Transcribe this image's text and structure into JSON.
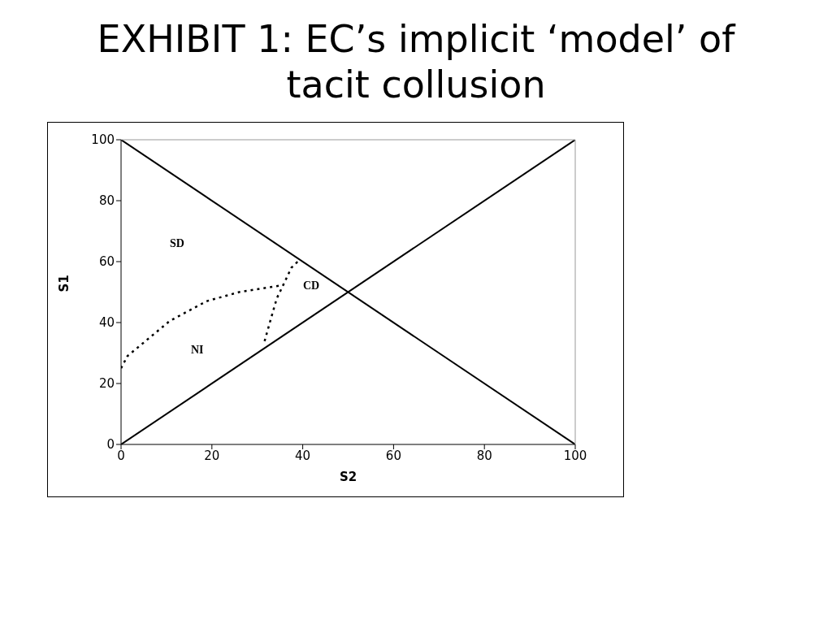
{
  "chart_data": {
    "type": "line",
    "title": "EXHIBIT 1: EC’s implicit ‘model’ of tacit collusion",
    "xlabel": "S2",
    "ylabel": "S1",
    "xlim": [
      0,
      100
    ],
    "ylim": [
      0,
      100
    ],
    "xticks": [
      0,
      20,
      40,
      60,
      80,
      100
    ],
    "yticks": [
      0,
      20,
      40,
      60,
      80,
      100
    ],
    "marker": "none",
    "series": [
      {
        "color": "#000000",
        "line_style": "solid",
        "x": [
          0,
          100
        ],
        "values": [
          100,
          0
        ]
      },
      {
        "color": "#000000",
        "line_style": "solid",
        "x": [
          0,
          100
        ],
        "values": [
          0,
          100
        ]
      },
      {
        "color": "#000000",
        "line_style": "dotted",
        "x": [
          0,
          1.4,
          10.7,
          18.8,
          26,
          35.7
        ],
        "values": [
          25,
          29,
          40.5,
          47,
          50,
          52.3
        ]
      },
      {
        "color": "#000000",
        "line_style": "dotted",
        "x": [
          31.6,
          33,
          34.3,
          35.7,
          37.5,
          39.3
        ],
        "values": [
          33.9,
          41.3,
          48,
          52.3,
          58,
          60.6
        ]
      }
    ],
    "annotations": [
      "SD",
      "CD",
      "NI"
    ]
  }
}
